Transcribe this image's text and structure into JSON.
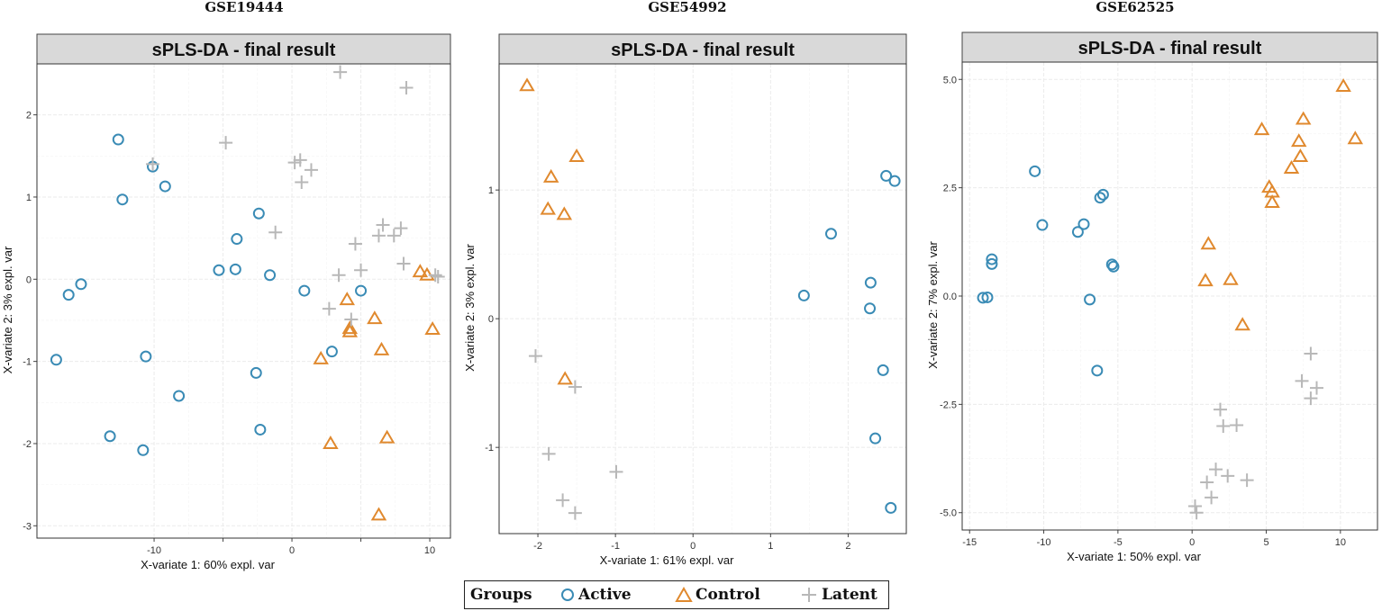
{
  "colors": {
    "active": "#3a8bb5",
    "control": "#e0892e",
    "latent": "#b8b8b8",
    "strip": "#d9d9d9",
    "grid": "#ebebeb"
  },
  "legend": {
    "title": "Groups",
    "items": [
      {
        "label": "Active",
        "shape": "circle",
        "icon": "circle-icon"
      },
      {
        "label": "Control",
        "shape": "triangle",
        "icon": "triangle-icon"
      },
      {
        "label": "Latent",
        "shape": "cross",
        "icon": "cross-icon"
      }
    ]
  },
  "chart_data": [
    {
      "type": "scatter",
      "dataset": "GSE19444",
      "title": "sPLS-DA - final result",
      "xlabel": "X-variate 1: 60% expl. var",
      "ylabel": "X-variate 2: 3% expl. var",
      "xlim": [
        -18.5,
        11.5
      ],
      "ylim": [
        -3.15,
        2.62
      ],
      "xticks": [
        -10,
        -5,
        0,
        5,
        10
      ],
      "xtick_labels": [
        "-10",
        "",
        "0",
        "",
        "10"
      ],
      "yticks": [
        -3,
        -2,
        -1,
        0,
        1,
        2
      ],
      "ytick_labels": [
        "-3",
        "-2",
        "-1",
        "0",
        "1",
        "2"
      ],
      "series": [
        {
          "name": "Active",
          "shape": "circle",
          "points": [
            [
              -12.6,
              1.7
            ],
            [
              -10.1,
              1.37
            ],
            [
              -9.2,
              1.13
            ],
            [
              -12.3,
              0.97
            ],
            [
              -2.4,
              0.8
            ],
            [
              -4.0,
              0.49
            ],
            [
              -5.3,
              0.11
            ],
            [
              -4.1,
              0.12
            ],
            [
              -1.6,
              0.05
            ],
            [
              0.9,
              -0.14
            ],
            [
              5.0,
              -0.14
            ],
            [
              -15.3,
              -0.06
            ],
            [
              -16.2,
              -0.19
            ],
            [
              -17.1,
              -0.98
            ],
            [
              -10.6,
              -0.94
            ],
            [
              2.9,
              -0.88
            ],
            [
              -8.2,
              -1.42
            ],
            [
              -2.6,
              -1.14
            ],
            [
              -2.3,
              -1.83
            ],
            [
              -13.2,
              -1.91
            ],
            [
              -10.8,
              -2.08
            ]
          ]
        },
        {
          "name": "Control",
          "shape": "triangle",
          "points": [
            [
              9.3,
              0.09
            ],
            [
              9.8,
              0.05
            ],
            [
              4.0,
              -0.25
            ],
            [
              6.0,
              -0.48
            ],
            [
              4.2,
              -0.6
            ],
            [
              4.2,
              -0.64
            ],
            [
              10.2,
              -0.61
            ],
            [
              6.5,
              -0.86
            ],
            [
              2.1,
              -0.97
            ],
            [
              6.9,
              -1.93
            ],
            [
              2.8,
              -2.0
            ],
            [
              6.3,
              -2.87
            ]
          ]
        },
        {
          "name": "Latent",
          "shape": "cross",
          "points": [
            [
              3.5,
              2.52
            ],
            [
              8.3,
              2.33
            ],
            [
              -4.8,
              1.66
            ],
            [
              0.2,
              1.42
            ],
            [
              0.6,
              1.45
            ],
            [
              1.4,
              1.33
            ],
            [
              -10.1,
              1.4
            ],
            [
              0.7,
              1.18
            ],
            [
              6.6,
              0.66
            ],
            [
              7.9,
              0.62
            ],
            [
              7.4,
              0.53
            ],
            [
              6.3,
              0.53
            ],
            [
              -1.2,
              0.57
            ],
            [
              4.6,
              0.43
            ],
            [
              8.1,
              0.19
            ],
            [
              5.0,
              0.11
            ],
            [
              10.4,
              0.05
            ],
            [
              10.6,
              0.03
            ],
            [
              3.4,
              0.05
            ],
            [
              2.7,
              -0.36
            ],
            [
              4.3,
              -0.49
            ]
          ]
        }
      ]
    },
    {
      "type": "scatter",
      "dataset": "GSE54992",
      "title": "sPLS-DA - final result",
      "xlabel": "X-variate 1: 61% expl. var",
      "ylabel": "X-variate 2: 3% expl. var",
      "xlim": [
        -2.5,
        2.75
      ],
      "ylim": [
        -1.67,
        1.98
      ],
      "xticks": [
        -2,
        -1,
        0,
        1,
        2
      ],
      "xtick_labels": [
        "-2",
        "-1",
        "0",
        "1",
        "2"
      ],
      "yticks": [
        -1,
        0,
        1
      ],
      "ytick_labels": [
        "-1",
        "0",
        "1"
      ],
      "series": [
        {
          "name": "Active",
          "shape": "circle",
          "points": [
            [
              2.49,
              1.11
            ],
            [
              2.6,
              1.07
            ],
            [
              1.78,
              0.66
            ],
            [
              2.29,
              0.28
            ],
            [
              1.43,
              0.18
            ],
            [
              2.28,
              0.08
            ],
            [
              2.45,
              -0.4
            ],
            [
              2.35,
              -0.93
            ],
            [
              2.55,
              -1.47
            ]
          ]
        },
        {
          "name": "Control",
          "shape": "triangle",
          "points": [
            [
              -2.14,
              1.81
            ],
            [
              -1.5,
              1.26
            ],
            [
              -1.83,
              1.1
            ],
            [
              -1.87,
              0.85
            ],
            [
              -1.66,
              0.81
            ],
            [
              -1.65,
              -0.47
            ]
          ]
        },
        {
          "name": "Latent",
          "shape": "cross",
          "points": [
            [
              -2.03,
              -0.29
            ],
            [
              -1.52,
              -0.53
            ],
            [
              -1.86,
              -1.05
            ],
            [
              -0.99,
              -1.19
            ],
            [
              -1.68,
              -1.41
            ],
            [
              -1.52,
              -1.51
            ]
          ]
        }
      ]
    },
    {
      "type": "scatter",
      "dataset": "GSE62525",
      "title": "sPLS-DA - final result",
      "xlabel": "X-variate 1: 50% expl. var",
      "ylabel": "X-variate 2: 7% expl. var",
      "xlim": [
        -15.5,
        12.5
      ],
      "ylim": [
        -5.4,
        5.4
      ],
      "xticks": [
        -15,
        -10,
        -5,
        0,
        5,
        10
      ],
      "xtick_labels": [
        "-15",
        "-10",
        "-5",
        "0",
        "5",
        "10"
      ],
      "yticks": [
        -5,
        -2.5,
        0,
        2.5,
        5
      ],
      "ytick_labels": [
        "-5.0",
        "-2.5",
        "0.0",
        "2.5",
        "5.0"
      ],
      "series": [
        {
          "name": "Active",
          "shape": "circle",
          "points": [
            [
              -10.6,
              2.88
            ],
            [
              -6.0,
              2.34
            ],
            [
              -6.2,
              2.27
            ],
            [
              -10.1,
              1.64
            ],
            [
              -7.3,
              1.66
            ],
            [
              -7.7,
              1.48
            ],
            [
              -13.5,
              0.85
            ],
            [
              -13.5,
              0.74
            ],
            [
              -5.4,
              0.73
            ],
            [
              -5.3,
              0.68
            ],
            [
              -14.1,
              -0.04
            ],
            [
              -13.8,
              -0.03
            ],
            [
              -6.9,
              -0.08
            ],
            [
              -6.4,
              -1.72
            ]
          ]
        },
        {
          "name": "Control",
          "shape": "triangle",
          "points": [
            [
              10.2,
              4.84
            ],
            [
              7.5,
              4.08
            ],
            [
              4.7,
              3.84
            ],
            [
              11.0,
              3.63
            ],
            [
              7.2,
              3.57
            ],
            [
              7.3,
              3.22
            ],
            [
              6.7,
              2.95
            ],
            [
              5.2,
              2.51
            ],
            [
              5.4,
              2.4
            ],
            [
              5.4,
              2.16
            ],
            [
              1.1,
              1.2
            ],
            [
              0.9,
              0.35
            ],
            [
              2.6,
              0.38
            ],
            [
              3.4,
              -0.67
            ]
          ]
        },
        {
          "name": "Latent",
          "shape": "cross",
          "points": [
            [
              8.0,
              -1.33
            ],
            [
              7.4,
              -1.96
            ],
            [
              8.4,
              -2.12
            ],
            [
              8.0,
              -2.36
            ],
            [
              1.9,
              -2.62
            ],
            [
              2.1,
              -3.0
            ],
            [
              3.0,
              -2.98
            ],
            [
              1.6,
              -4.0
            ],
            [
              2.4,
              -4.15
            ],
            [
              3.7,
              -4.25
            ],
            [
              1.0,
              -4.3
            ],
            [
              1.3,
              -4.65
            ],
            [
              0.2,
              -4.85
            ],
            [
              0.3,
              -5.0
            ]
          ]
        }
      ]
    }
  ]
}
